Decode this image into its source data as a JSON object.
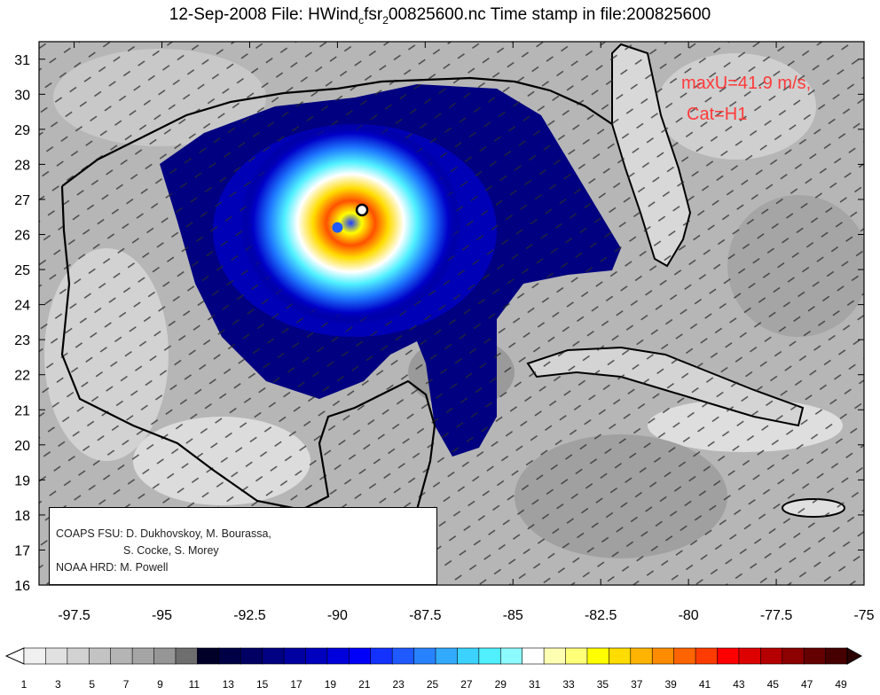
{
  "title": {
    "prefix": "12-Sep-2008 File: HWind",
    "sub1": "c",
    "middle": "fsr",
    "sub2": "2",
    "suffix": "00825600.nc Time stamp in file:200825600"
  },
  "annotation": {
    "line1": "maxU=41.9 m/s,",
    "line2": "Cat=H1",
    "color": "#ff3a3a"
  },
  "credits": {
    "line1": "COAPS FSU: D. Dukhovskoy, M. Bourassa,",
    "line2": "S. Cocke, S. Morey",
    "line3": "NOAA HRD:  M. Powell"
  },
  "map": {
    "lon_range": [
      -98.5,
      -75
    ],
    "lat_range": [
      16,
      31.5
    ],
    "lon_ticks": [
      "-97.5",
      "-95",
      "-92.5",
      "-90",
      "-87.5",
      "-85",
      "-82.5",
      "-80",
      "-77.5",
      "-75"
    ],
    "lat_ticks": [
      "16",
      "17",
      "18",
      "19",
      "20",
      "21",
      "22",
      "23",
      "24",
      "25",
      "26",
      "27",
      "28",
      "29",
      "30",
      "31"
    ],
    "storm_center": {
      "lon": -90.0,
      "lat": 26.2
    },
    "storm_marker": {
      "lon": -89.3,
      "lat": 26.7
    }
  },
  "colorbar": {
    "labels": [
      "1",
      "3",
      "5",
      "7",
      "9",
      "11",
      "13",
      "15",
      "17",
      "19",
      "21",
      "23",
      "25",
      "27",
      "29",
      "31",
      "33",
      "35",
      "37",
      "39",
      "41",
      "43",
      "45",
      "47",
      "49"
    ],
    "colors": [
      "#f0f0f0",
      "#e1e1e1",
      "#d2d2d2",
      "#c3c3c3",
      "#b4b4b4",
      "#a5a5a5",
      "#969696",
      "#6e6e6e",
      "#000028",
      "#000046",
      "#000064",
      "#000082",
      "#0000a0",
      "#0000be",
      "#0000dc",
      "#0000fa",
      "#1432ff",
      "#1e5aff",
      "#2882ff",
      "#32aaff",
      "#3cd2ff",
      "#50f0ff",
      "#8cfaff",
      "#ffffff",
      "#ffffb4",
      "#ffff78",
      "#ffff00",
      "#ffdc00",
      "#ffb400",
      "#ff8c00",
      "#ff6400",
      "#ff3c00",
      "#ff0000",
      "#dc0000",
      "#b40000",
      "#8c0000",
      "#640000",
      "#460000"
    ]
  }
}
